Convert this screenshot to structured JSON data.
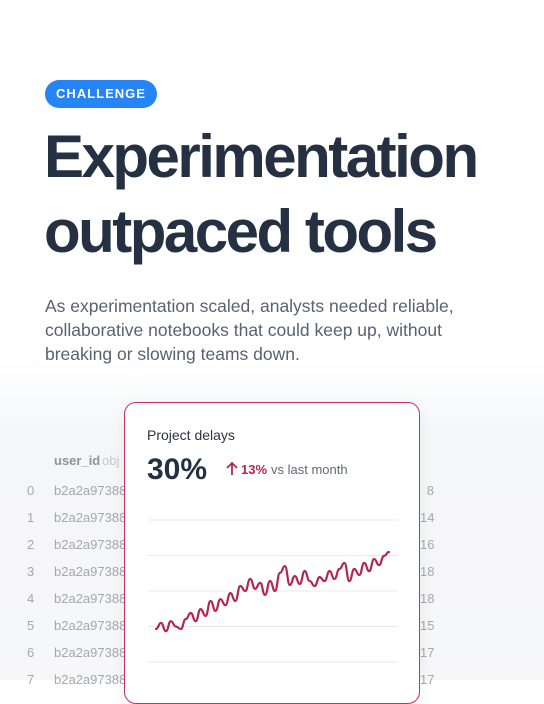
{
  "badge": "CHALLENGE",
  "title": [
    "Experimentation",
    "outpaced tools"
  ],
  "description": [
    "As experimentation scaled, analysts needed reliable,",
    "collaborative notebooks that could keep up, without",
    "breaking or slowing teams down."
  ],
  "table": {
    "headers": [
      "user_id",
      "obj"
    ],
    "rows": [
      [
        "0",
        "b2a2a97388",
        "8"
      ],
      [
        "1",
        "b2a2a97388",
        "14"
      ],
      [
        "2",
        "b2a2a97388",
        "16"
      ],
      [
        "3",
        "b2a2a97388",
        "18"
      ],
      [
        "4",
        "b2a2a97388",
        "18"
      ],
      [
        "5",
        "b2a2a97388",
        "15"
      ],
      [
        "6",
        "b2a2a97388",
        "17"
      ],
      [
        "7",
        "b2a2a97388",
        "17"
      ]
    ]
  },
  "card": {
    "title": "Project delays",
    "metric": "30%",
    "change": "13%",
    "change_note": "vs last month"
  },
  "chart_data": {
    "type": "line",
    "color": "#b3264f",
    "grid": true,
    "ylim": [
      0,
      4
    ],
    "yticks": [
      0,
      1,
      2,
      3,
      4
    ],
    "values": [
      0.93,
      1.1,
      0.87,
      1.15,
      1.0,
      0.93,
      1.21,
      1.38,
      1.15,
      1.49,
      1.3,
      1.72,
      1.44,
      1.77,
      1.6,
      1.94,
      1.72,
      2.14,
      2.0,
      2.34,
      2.06,
      2.23,
      1.89,
      2.28,
      2.0,
      2.51,
      2.7,
      2.17,
      2.42,
      2.2,
      2.56,
      2.28,
      2.14,
      2.39,
      2.28,
      2.56,
      2.34,
      2.62,
      2.79,
      2.28,
      2.62,
      2.45,
      2.79,
      2.56,
      2.9,
      2.73,
      2.99,
      3.1
    ]
  }
}
